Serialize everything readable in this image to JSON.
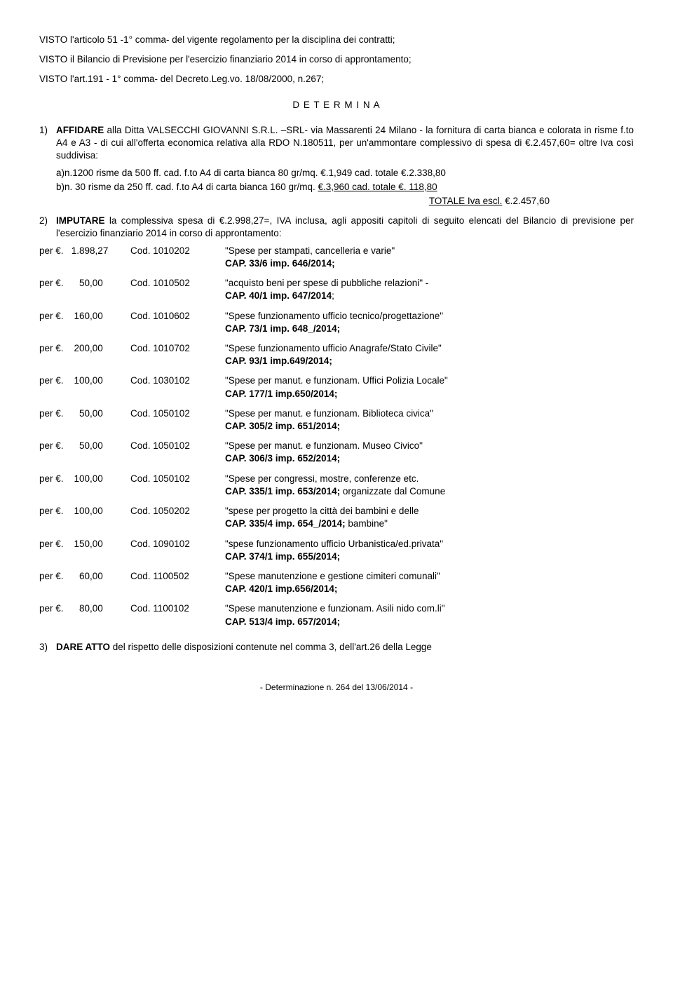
{
  "para1": "VISTO l'articolo 51 -1° comma- del vigente regolamento per la disciplina dei contratti;",
  "para2": "VISTO il Bilancio di Previsione per l'esercizio finanziario 2014 in corso di approntamento;",
  "para3": "VISTO l'art.191 - 1° comma- del Decreto.Leg.vo. 18/08/2000, n.267;",
  "determina": "D E T E R M I N A",
  "item1_num": "1)",
  "item1_pre": "AFFIDARE",
  "item1_body": " alla Ditta VALSECCHI GIOVANNI S.R.L. –SRL- via Massarenti 24 Milano - la fornitura di carta bianca e colorata in risme f.to A4 e A3 - di cui all'offerta economica relativa alla RDO N.180511, per un'ammontare complessivo di spesa di €.2.457,60= oltre Iva così suddivisa:",
  "sub_a": "a)n.1200 risme da 500 ff. cad. f.to A4 di carta bianca 80 gr/mq. €.1,949 cad. totale €.2.338,80",
  "sub_b_pre": "b)n. 30 risme da 250 ff. cad. f.to A4 di carta bianca 160 gr/mq. ",
  "sub_b_under": "€.3,960 cad. totale €.   118,80",
  "total_label_under": "TOTALE Iva escl.",
  "total_val": " €.2.457,60",
  "item2_num": "2)",
  "item2_pre": "IMPUTARE",
  "item2_body": " la complessiva spesa di €.2.998,27=, IVA inclusa, agli appositi capitoli di seguito elencati del Bilancio di previsione per l'esercizio finanziario 2014 in corso di approntamento:",
  "allocs": [
    {
      "amt": "per €.   1.898,27",
      "cod": "Cod. 1010202",
      "desc": "\"Spese per stampati, cancelleria e varie\"",
      "cap": "CAP. 33/6 imp. 646/2014;",
      "cap_bold": true,
      "extra": ""
    },
    {
      "amt": "per €.      50,00",
      "cod": "Cod. 1010502",
      "desc": "\"acquisto beni per spese di pubbliche relazioni\" -",
      "cap": "CAP. 40/1 imp. 647/2014",
      "cap_bold": true,
      "extra": ";"
    },
    {
      "amt": "per €.    160,00",
      "cod": "Cod. 1010602",
      "desc": "\"Spese funzionamento ufficio tecnico/progettazione\"",
      "cap": "CAP. 73/1 imp. 648_/2014;",
      "cap_bold": true,
      "extra": ""
    },
    {
      "amt": "per €.    200,00",
      "cod": "Cod. 1010702",
      "desc": "\"Spese funzionamento ufficio Anagrafe/Stato Civile\"",
      "cap": "CAP. 93/1 imp.649/2014;",
      "cap_bold": true,
      "extra": ""
    },
    {
      "amt": "per €.    100,00",
      "cod": "Cod. 1030102",
      "desc": "\"Spese per manut. e funzionam. Uffici Polizia Locale\"",
      "cap": "CAP. 177/1 imp.650/2014;",
      "cap_bold": true,
      "extra": ""
    },
    {
      "amt": "per €.      50,00",
      "cod": "Cod. 1050102",
      "desc": "\"Spese per manut. e funzionam. Biblioteca civica\"",
      "cap": "CAP. 305/2 imp. 651/2014;",
      "cap_bold": true,
      "extra": ""
    },
    {
      "amt": "per €.      50,00",
      "cod": "Cod. 1050102",
      "desc": "\"Spese per manut. e funzionam. Museo Civico\"",
      "cap": "CAP. 306/3 imp. 652/2014;",
      "cap_bold": true,
      "extra": ""
    },
    {
      "amt": "per €.    100,00",
      "cod": "Cod. 1050102",
      "desc": "\"Spese per congressi, mostre, conferenze etc.",
      "cap": "CAP. 335/1 imp. 653/2014;",
      "cap_bold": true,
      "extra": " organizzate dal Comune"
    },
    {
      "amt": "per €.    100,00",
      "cod": "Cod. 1050202",
      "desc": "\"spese per progetto la città dei bambini e delle",
      "cap": "CAP. 335/4 imp. 654_/2014;",
      "cap_bold": true,
      "extra": "  bambine\""
    },
    {
      "amt": "per €.    150,00",
      "cod": "Cod. 1090102",
      "desc": "\"spese funzionamento ufficio Urbanistica/ed.privata\"",
      "cap": "CAP. 374/1 imp. 655/2014;",
      "cap_bold": true,
      "extra": ""
    },
    {
      "amt": "per €.      60,00",
      "cod": "Cod. 1100502",
      "desc": "\"Spese manutenzione e gestione cimiteri comunali\"",
      "cap": "CAP. 420/1 imp.656/2014;",
      "cap_bold": true,
      "extra": ""
    },
    {
      "amt": "per €.      80,00",
      "cod": "Cod. 1100102",
      "desc": "\"Spese manutenzione e funzionam. Asili nido com.li\"",
      "cap": "CAP. 513/4 imp. 657/2014;",
      "cap_bold": true,
      "extra": ""
    }
  ],
  "item3_num": "3)",
  "item3_pre": "DARE ATTO",
  "item3_body": " del rispetto delle disposizioni contenute nel comma 3, dell'art.26 della Legge",
  "footer": "- Determinazione n. 264 del 13/06/2014 -"
}
